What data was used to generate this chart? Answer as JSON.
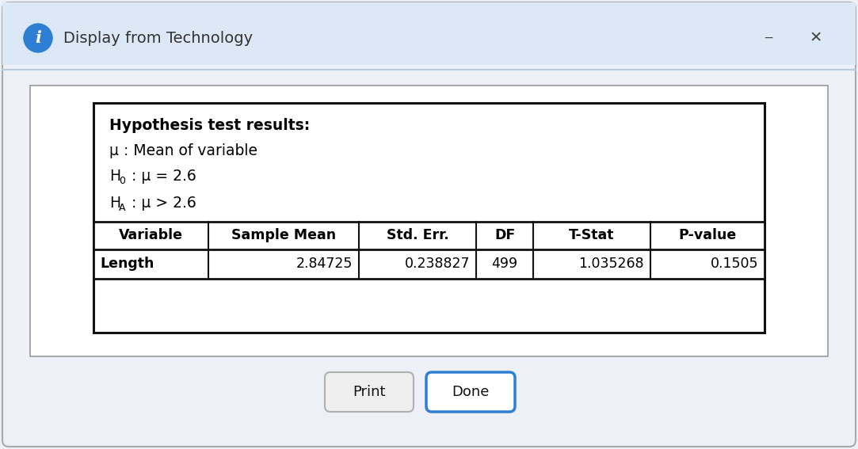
{
  "title": "Display from Technology",
  "outer_bg": "#edf1f7",
  "title_bar_bg": "#dce8f5",
  "content_bg": "#f2f4f7",
  "white": "#ffffff",
  "hypothesis_title": "Hypothesis test results:",
  "line1": "μ : Mean of variable",
  "line2_prefix": "H",
  "line2_sub": "0",
  "line2_suffix": " : μ = 2.6",
  "line3_prefix": "H",
  "line3_sub": "A",
  "line3_suffix": " : μ > 2.6",
  "table_headers": [
    "Variable",
    "Sample Mean",
    "Std. Err.",
    "DF",
    "T-Stat",
    "P-value"
  ],
  "table_row": [
    "Length",
    "2.84725",
    "0.238827",
    "499",
    "1.035268",
    "0.1505"
  ],
  "col_alignments": [
    "left",
    "right",
    "right",
    "center",
    "right",
    "right"
  ],
  "button1": "Print",
  "button2": "Done",
  "button2_border_color": "#2e7fd4",
  "info_icon_color": "#2e7fd4",
  "outer_border_color": "#aaaaaa",
  "separator_color": "#b8cce0",
  "table_border_color": "#111111",
  "inner_results_border": "#111111",
  "inner_panel_border": "#999999",
  "minimize_color": "#444444",
  "close_color": "#444444"
}
